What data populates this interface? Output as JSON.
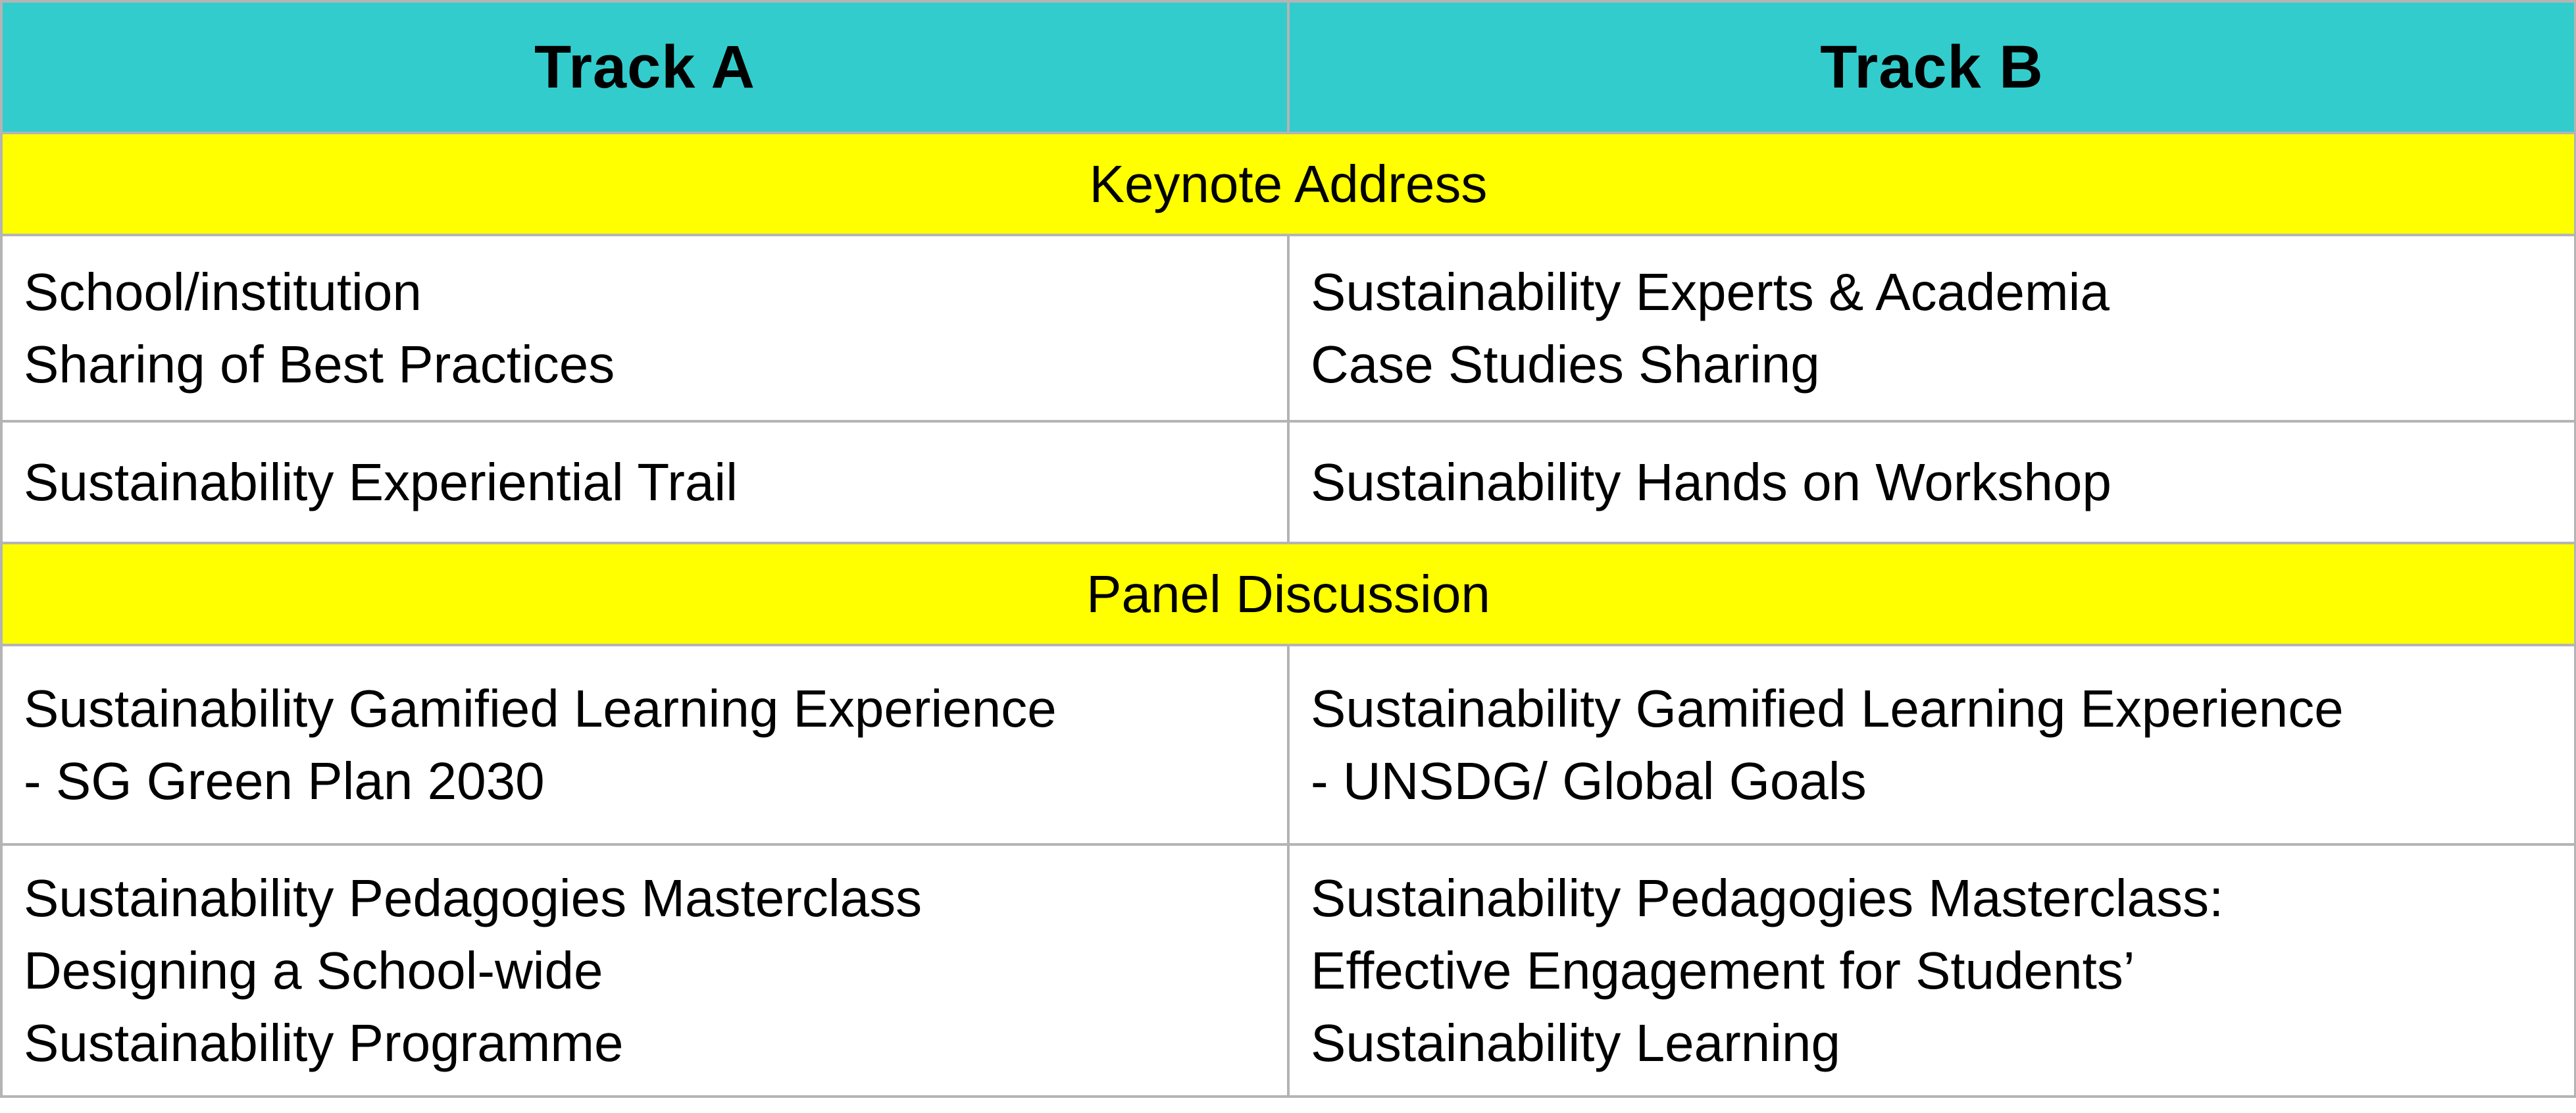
{
  "header": {
    "track_a": "Track A",
    "track_b": "Track B"
  },
  "rows": {
    "keynote": "Keynote Address",
    "sharing": {
      "a": [
        "School/institution",
        "Sharing of Best Practices"
      ],
      "b": [
        "Sustainability Experts & Academia",
        "Case Studies Sharing"
      ]
    },
    "trail": {
      "a": [
        "Sustainability Experiential Trail"
      ],
      "b": [
        "Sustainability Hands on Workshop"
      ]
    },
    "panel": "Panel Discussion",
    "gamified": {
      "a": [
        "Sustainability Gamified Learning Experience",
        "- SG Green Plan 2030"
      ],
      "b": [
        "Sustainability Gamified Learning Experience",
        "- UNSDG/ Global Goals"
      ]
    },
    "masterclass": {
      "a": [
        "Sustainability Pedagogies Masterclass",
        "Designing a School-wide",
        "Sustainability Programme"
      ],
      "b": [
        "Sustainability Pedagogies Masterclass:",
        "Effective Engagement for Students’",
        "Sustainability Learning"
      ]
    }
  },
  "colors": {
    "header_bg": "#33cccc",
    "band_bg": "#ffff00",
    "border": "#b4b4b4"
  }
}
